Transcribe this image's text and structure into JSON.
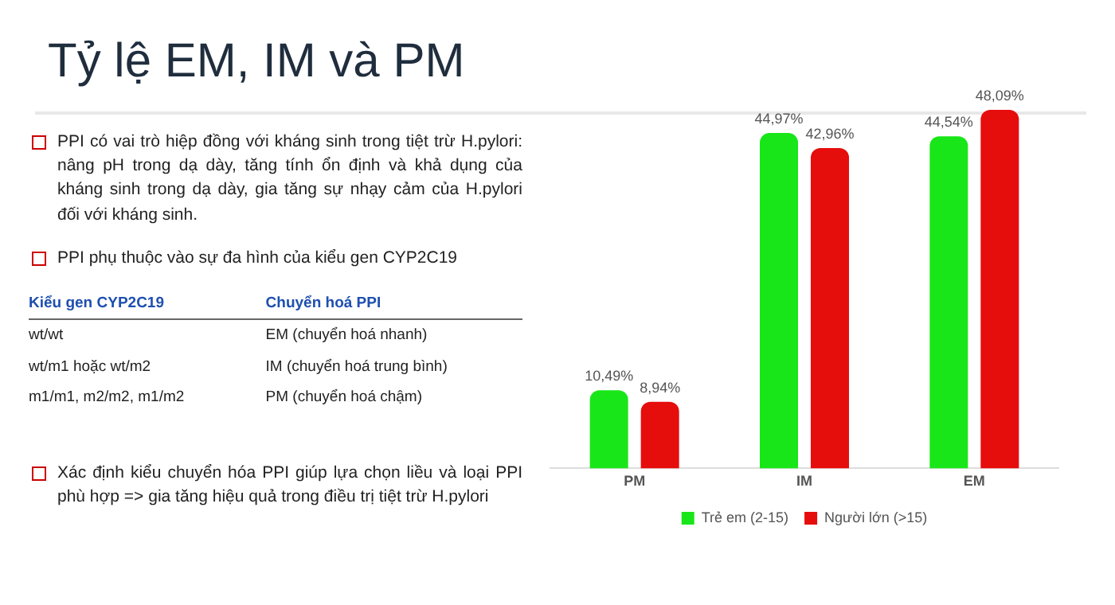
{
  "chart_data": {
    "type": "bar",
    "title": "Tỷ lệ EM, IM và PM",
    "categories": [
      "PM",
      "IM",
      "EM"
    ],
    "series": [
      {
        "name": "Trẻ em (2-15)",
        "color": "#19e619",
        "values": [
          10.49,
          44.97,
          44.54
        ],
        "value_labels": [
          "10,49%",
          "44,97%",
          "44,54%"
        ]
      },
      {
        "name": "Người lớn (>15)",
        "color": "#e60d0d",
        "values": [
          8.94,
          42.96,
          48.09
        ],
        "value_labels": [
          "8,94%",
          "42,96%",
          "48,09%"
        ]
      }
    ],
    "tick_labels": "x",
    "legend": "bottom",
    "grid": false,
    "annotations": [
      "PPI có vai trò hiệp đồng với kháng sinh  trong tiệt trừ H.pylori: nâng pH trong dạ dày, tăng tính ổn định và khả dụng của kháng sinh trong dạ dày, gia tăng sự nhạy cảm của H.pylori đối với kháng sinh.",
      "PPI phụ thuộc vào sự đa hình của kiểu gen CYP2C19",
      "Kiểu gen CYP2C19",
      "Chuyển hoá PPI",
      "wt/wt",
      "EM (chuyển hoá nhanh)",
      "wt/m1 hoặc wt/m2",
      "IM (chuyển hoá trung bình)",
      "m1/m1, m2/m2, m1/m2",
      "PM (chuyển hoá chậm)",
      "Xác định kiểu chuyển hóa PPI giúp lựa chọn liều và loại PPI phù hợp => gia tăng hiệu quả trong điều trị tiệt trừ H.pylori"
    ]
  }
}
